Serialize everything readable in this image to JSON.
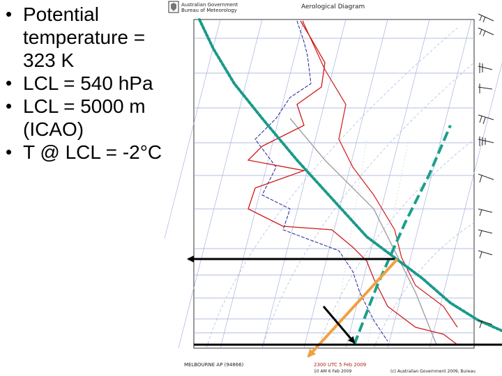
{
  "bullets": [
    {
      "text": "Potential temperature = 323 K"
    },
    {
      "text": "LCL = 540 hPa"
    },
    {
      "text": "LCL = 5000 m (ICAO)"
    },
    {
      "text": "T @ LCL = -2°C"
    }
  ],
  "bullet_glyph": "•",
  "diagram": {
    "header_org_1": "Australian Government",
    "header_org_2": "Bureau of Meteorology",
    "title": "Aerological Diagram",
    "station": "MELBOURNE AP (94866)",
    "time_1": "2300 UTC 5 Feb 2009",
    "time_2": "10 AM 6 Feb 2009",
    "footer_copyright": "(c) Australian Government 2009, Bureau",
    "colors": {
      "temperature_trace": "#d01818",
      "dewpoint_trace": "#2020a0",
      "dry_adiabat_marker": "#1a9a8a",
      "moist_adiabat_marker": "#1aa08a",
      "lcl_path": "#f0a040",
      "pointer_arrows": "#000000",
      "grid": "#9aa8d8",
      "grid_labels": "#3a4aa0"
    }
  }
}
